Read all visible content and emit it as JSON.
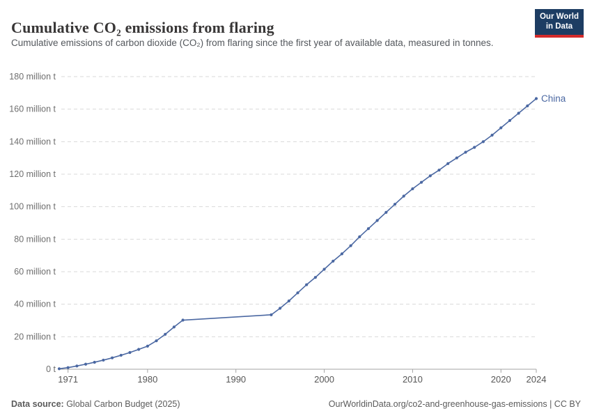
{
  "header": {
    "title": "Cumulative CO₂ emissions from flaring",
    "subtitle": "Cumulative emissions of carbon dioxide (CO₂) from flaring since the first year of available data, measured in tonnes.",
    "logo_line1": "Our World",
    "logo_line2": "in Data"
  },
  "colors": {
    "line": "#4b68a2",
    "end_label": "#4b68a2",
    "grid": "#d9d9d9",
    "axis": "#a3a3a3",
    "ytick_text": "#6e6e6e",
    "xtick_text": "#565656",
    "title_text": "#383636",
    "subtitle_text": "#53575c",
    "footer_text": "#5b5b5b",
    "logo_bg": "#1d3d63",
    "logo_underline": "#d42b2b"
  },
  "chart_data": {
    "type": "line",
    "title": "Cumulative CO₂ emissions from flaring",
    "unit": "million t",
    "grid": "horizontal-dashed",
    "legend_position": "end-of-line",
    "xlim": [
      1970,
      2024
    ],
    "ylim": [
      0,
      180
    ],
    "yticks": [
      {
        "value": 0,
        "label": "0 t"
      },
      {
        "value": 20,
        "label": "20 million t"
      },
      {
        "value": 40,
        "label": "40 million t"
      },
      {
        "value": 60,
        "label": "60 million t"
      },
      {
        "value": 80,
        "label": "80 million t"
      },
      {
        "value": 100,
        "label": "100 million t"
      },
      {
        "value": 120,
        "label": "120 million t"
      },
      {
        "value": 140,
        "label": "140 million t"
      },
      {
        "value": 160,
        "label": "160 million t"
      },
      {
        "value": 180,
        "label": "180 million t"
      }
    ],
    "xticks": [
      {
        "value": 1971,
        "label": "1971"
      },
      {
        "value": 1980,
        "label": "1980"
      },
      {
        "value": 1990,
        "label": "1990"
      },
      {
        "value": 2000,
        "label": "2000"
      },
      {
        "value": 2010,
        "label": "2010"
      },
      {
        "value": 2020,
        "label": "2020"
      },
      {
        "value": 2024,
        "label": "2024"
      }
    ],
    "series": [
      {
        "name": "China",
        "color": "#4b68a2",
        "years": [
          1970,
          1971,
          1972,
          1973,
          1974,
          1975,
          1976,
          1977,
          1978,
          1979,
          1980,
          1981,
          1982,
          1983,
          1984,
          1994,
          1995,
          1996,
          1997,
          1998,
          1999,
          2000,
          2001,
          2002,
          2003,
          2004,
          2005,
          2006,
          2007,
          2008,
          2009,
          2010,
          2011,
          2012,
          2013,
          2014,
          2015,
          2016,
          2017,
          2018,
          2019,
          2020,
          2021,
          2022,
          2023,
          2024
        ],
        "values": [
          0.3,
          1.0,
          2.0,
          3.1,
          4.3,
          5.6,
          7.0,
          8.6,
          10.3,
          12.2,
          14.2,
          17.5,
          21.5,
          26.0,
          30.2,
          33.5,
          37.5,
          42.0,
          47.0,
          52.0,
          56.5,
          61.5,
          66.5,
          71.0,
          76.0,
          81.5,
          86.5,
          91.5,
          96.5,
          101.5,
          106.5,
          111.0,
          115.0,
          119.0,
          122.5,
          126.5,
          130.0,
          133.5,
          136.5,
          140.0,
          144.0,
          148.5,
          153.0,
          157.5,
          162.0,
          166.5
        ]
      }
    ]
  },
  "footer": {
    "source_label": "Data source:",
    "source_value": " Global Carbon Budget (2025)",
    "citation": "OurWorldinData.org/co2-and-greenhouse-gas-emissions | CC BY"
  }
}
